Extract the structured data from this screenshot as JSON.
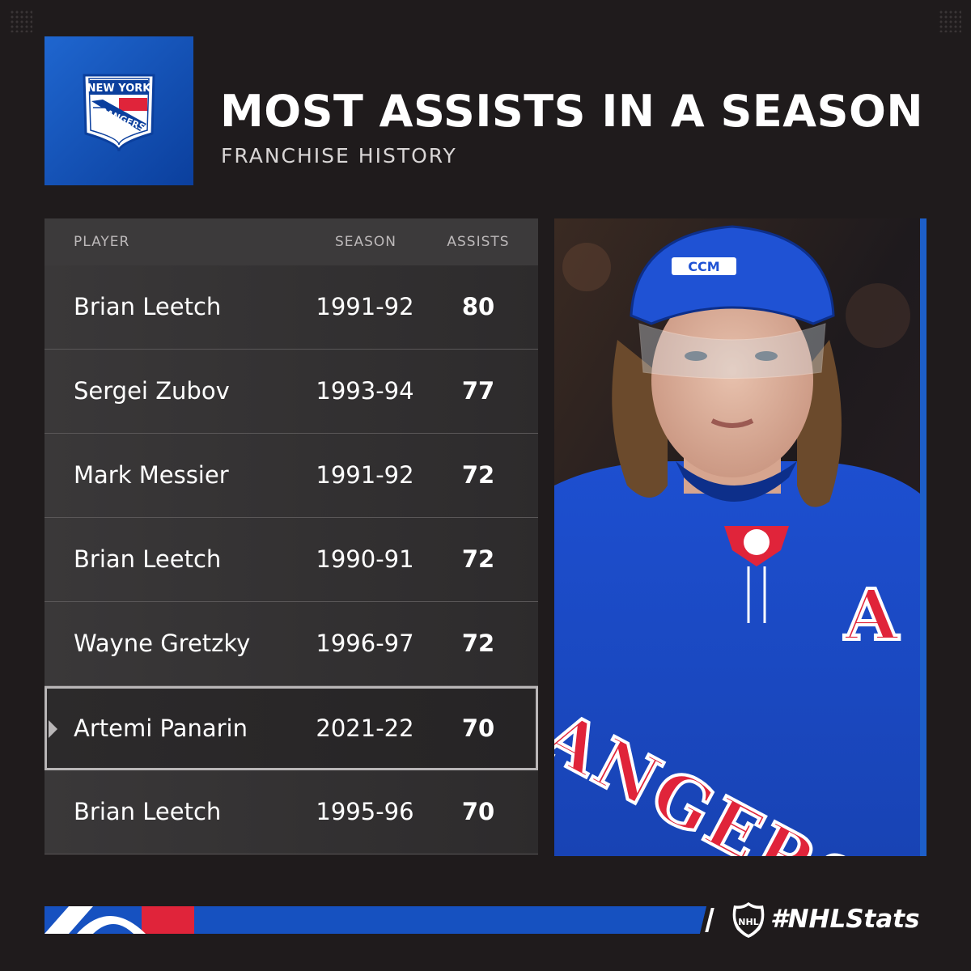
{
  "header": {
    "title": "MOST ASSISTS IN A SEASON",
    "subtitle": "FRANCHISE HISTORY"
  },
  "logo": {
    "name": "new-york-rangers-logo",
    "line1": "NEW YORK",
    "line2": "RANGERS",
    "colors": {
      "background": "#1f66cf",
      "blue": "#0b3f9d",
      "red": "#e0243a",
      "white": "#ffffff"
    }
  },
  "table": {
    "columns": {
      "player": "PLAYER",
      "season": "SEASON",
      "assists": "ASSISTS"
    },
    "rows": [
      {
        "player": "Brian Leetch",
        "season": "1991-92",
        "assists": "80"
      },
      {
        "player": "Sergei Zubov",
        "season": "1993-94",
        "assists": "77"
      },
      {
        "player": "Mark Messier",
        "season": "1991-92",
        "assists": "72"
      },
      {
        "player": "Brian Leetch",
        "season": "1990-91",
        "assists": "72"
      },
      {
        "player": "Wayne Gretzky",
        "season": "1996-97",
        "assists": "72"
      },
      {
        "player": "Artemi Panarin",
        "season": "2021-22",
        "assists": "70",
        "highlighted": true
      },
      {
        "player": "Brian Leetch",
        "season": "1995-96",
        "assists": "70"
      }
    ]
  },
  "photo": {
    "subject": "hockey-player-photo",
    "jersey_text": "RANGERS",
    "helmet_brand": "CCM",
    "captain_letter": "A"
  },
  "footer": {
    "hashtag": "#NHLStats",
    "brand_icon": "nhl-shield-icon"
  },
  "colors": {
    "background": "#1f1b1c",
    "accent_blue": "#1651c0",
    "accent_red": "#e0243a",
    "highlight_border": "#b9b6b7"
  }
}
